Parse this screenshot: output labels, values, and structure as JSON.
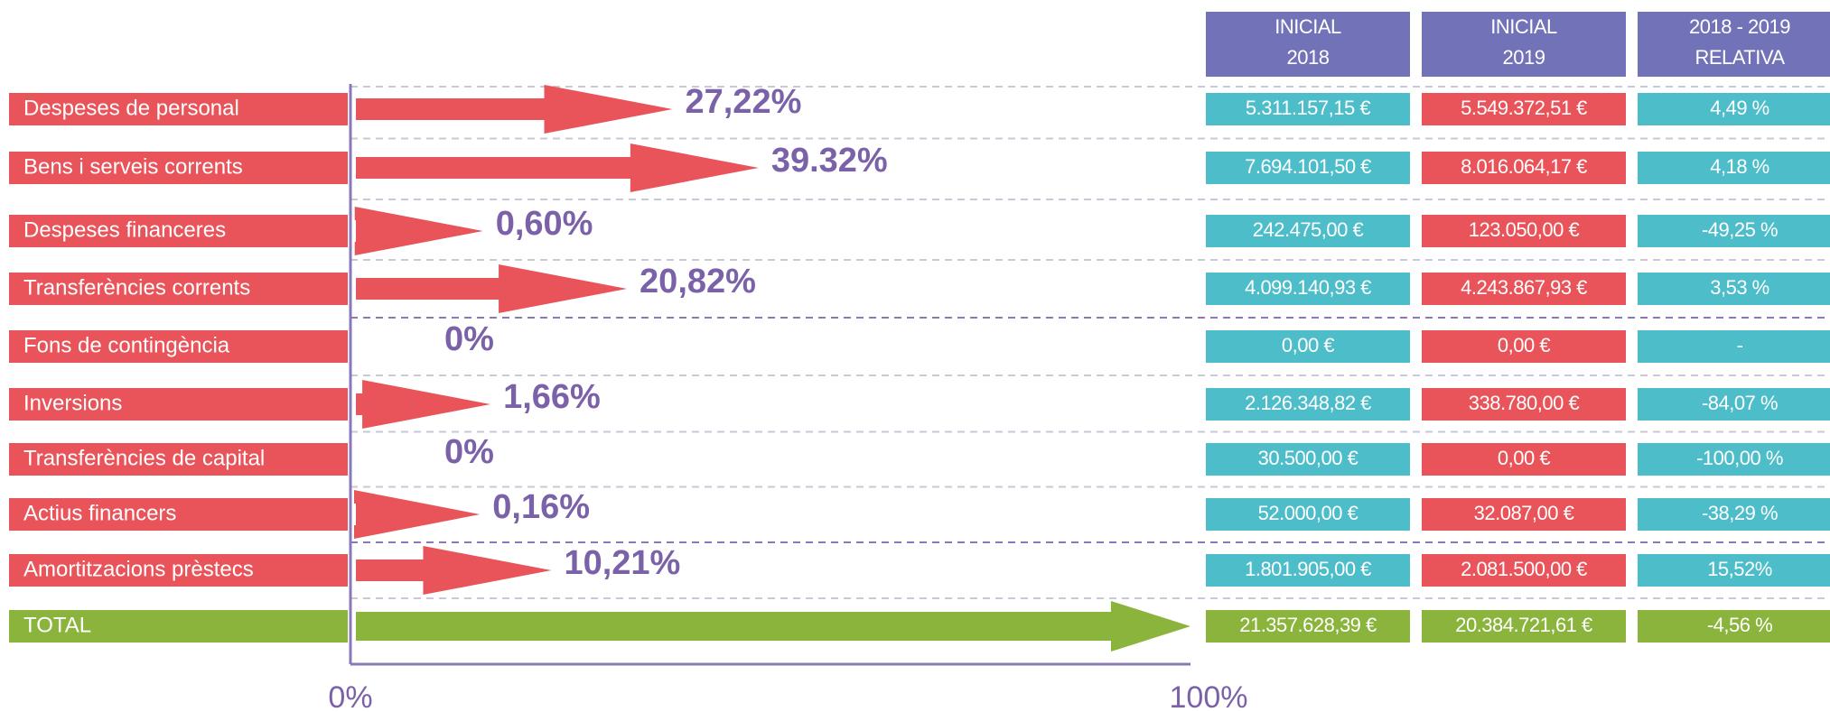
{
  "chart_data": {
    "type": "arrow-bar",
    "categories": [
      "Despeses de personal",
      "Bens i serveis corrents",
      "Despeses financeres",
      "Transferències corrents",
      "Fons de contingència",
      "Inversions",
      "Transferències de capital",
      "Actius financers",
      "Amortitzacions prèstecs",
      "TOTAL"
    ],
    "values": [
      27.22,
      39.32,
      0.6,
      20.82,
      0,
      1.66,
      0,
      0.16,
      10.21,
      100
    ],
    "value_labels": [
      "27,22%",
      "39.32%",
      "0,60%",
      "20,82%",
      "0%",
      "1,66%",
      "0%",
      "0,16%",
      "10,21%",
      null
    ],
    "color": "#e8545a",
    "total_color": "#8ab43b",
    "label_color": "#7b62a8",
    "xlim": [
      0,
      100
    ],
    "xticks": [
      {
        "value": 0,
        "label": "0%"
      },
      {
        "value": 100,
        "label": "100%"
      }
    ],
    "table": {
      "header_color": "#7272b8",
      "column_colors": [
        "#4dbdc9",
        "#e8545a",
        "#4dbdc9"
      ],
      "columns": [
        [
          "INICIAL",
          "2018"
        ],
        [
          "INICIAL",
          "2019"
        ],
        [
          "2018 - 2019",
          "RELATIVA"
        ]
      ],
      "rows": [
        [
          "5.311.157,15 €",
          "5.549.372,51 €",
          "4,49 %"
        ],
        [
          "7.694.101,50 €",
          "8.016.064,17 €",
          "4,18 %"
        ],
        [
          "242.475,00 €",
          "123.050,00 €",
          "-49,25 %"
        ],
        [
          "4.099.140,93 €",
          "4.243.867,93 €",
          "3,53 %"
        ],
        [
          "0,00 €",
          "0,00 €",
          "-"
        ],
        [
          "2.126.348,82 €",
          "338.780,00 €",
          "-84,07 %"
        ],
        [
          "30.500,00 €",
          "0,00 €",
          "-100,00 %"
        ],
        [
          "52.000,00 €",
          "32.087,00 €",
          "-38,29 %"
        ],
        [
          "1.801.905,00 €",
          "2.081.500,00 €",
          "15,52%"
        ],
        [
          "21.357.628,39 €",
          "20.384.721,61 €",
          "-4,56 %"
        ]
      ]
    }
  }
}
